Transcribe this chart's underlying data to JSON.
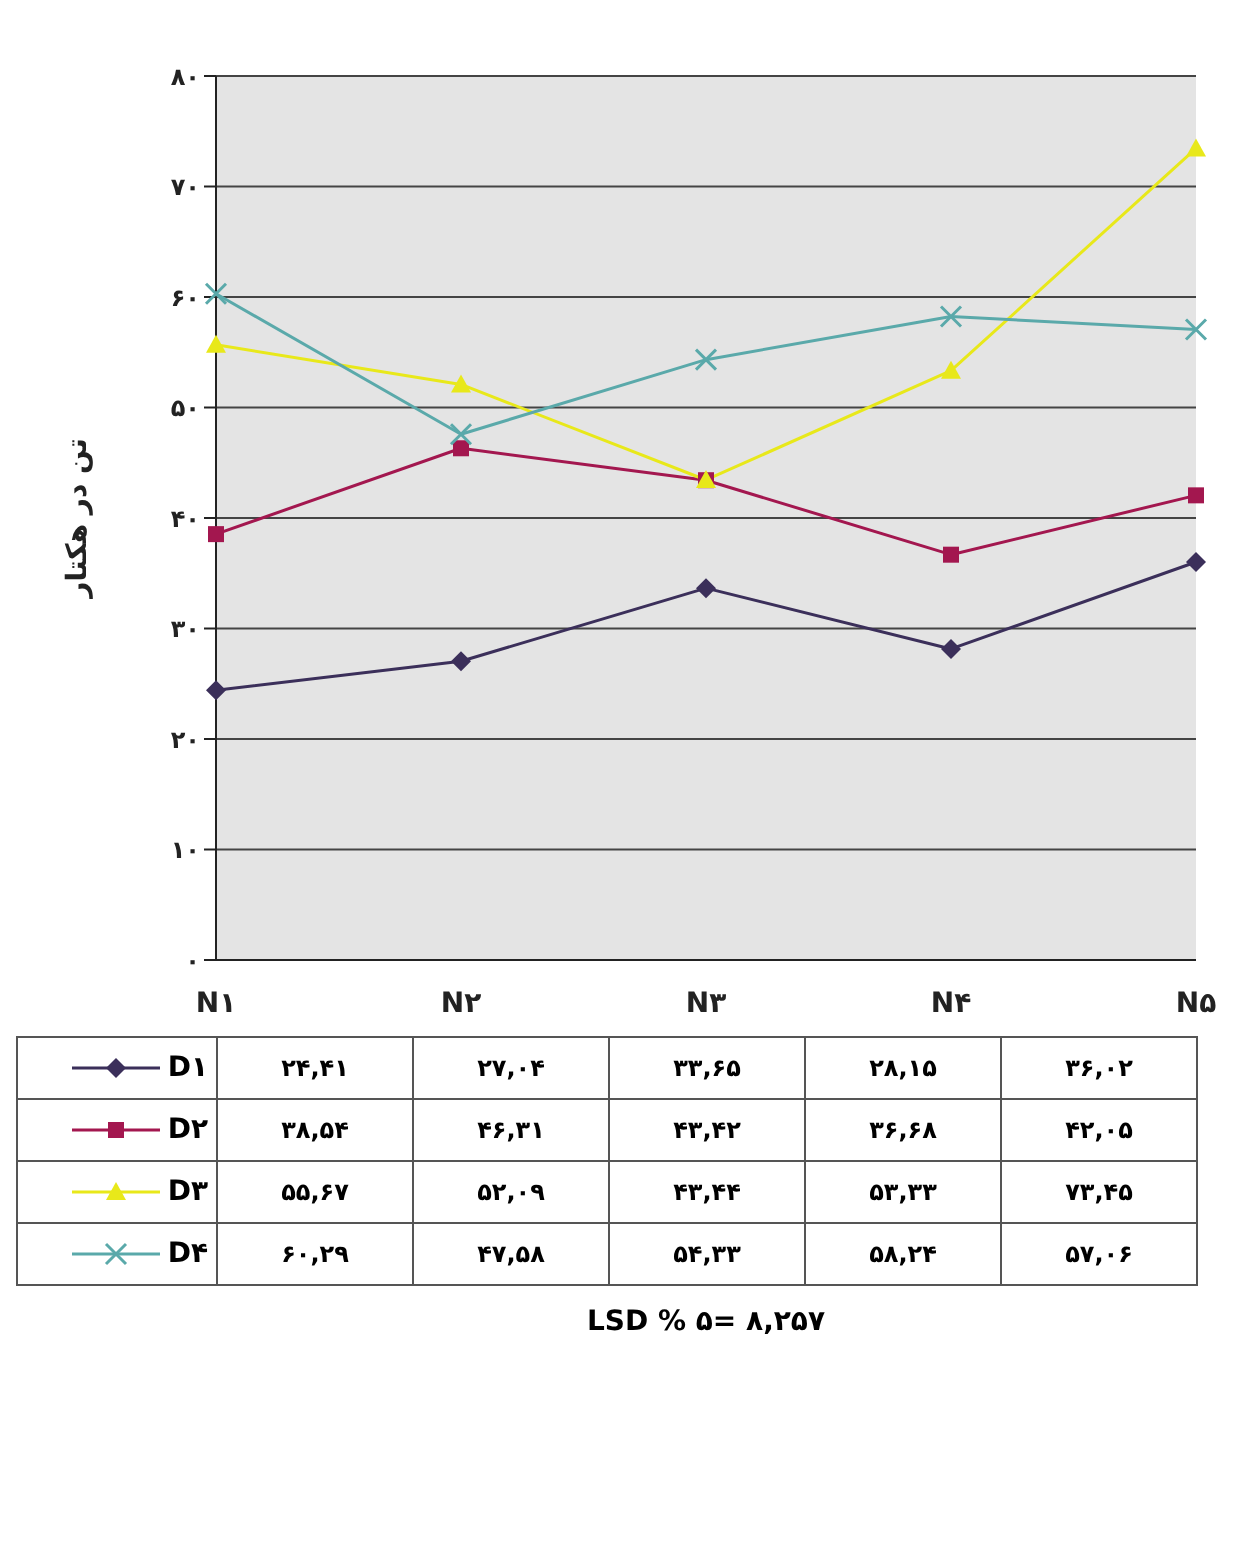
{
  "chart_data": {
    "type": "line",
    "ylabel": "تن در هکتار",
    "categories": [
      "N۱",
      "N۲",
      "N۳",
      "N۴",
      "N۵"
    ],
    "series": [
      {
        "name": "D۱",
        "color": "#3b2f5a",
        "marker": "diamond",
        "values": [
          24.41,
          27.04,
          33.65,
          28.15,
          36.02
        ],
        "value_labels": [
          "۲۴,۴۱",
          "۲۷,۰۴",
          "۳۳,۶۵",
          "۲۸,۱۵",
          "۳۶,۰۲"
        ]
      },
      {
        "name": "D۲",
        "color": "#a3174f",
        "marker": "square",
        "values": [
          38.54,
          46.31,
          43.42,
          36.68,
          42.05
        ],
        "value_labels": [
          "۳۸,۵۴",
          "۴۶,۳۱",
          "۴۳,۴۲",
          "۳۶,۶۸",
          "۴۲,۰۵"
        ]
      },
      {
        "name": "D۳",
        "color": "#e8e81a",
        "marker": "triangle",
        "values": [
          55.67,
          52.09,
          43.44,
          53.33,
          73.45
        ],
        "value_labels": [
          "۵۵,۶۷",
          "۵۲,۰۹",
          "۴۳,۴۴",
          "۵۳,۳۳",
          "۷۳,۴۵"
        ]
      },
      {
        "name": "D۴",
        "color": "#5aa9aa",
        "marker": "cross",
        "values": [
          60.29,
          47.58,
          54.33,
          58.24,
          57.06
        ],
        "value_labels": [
          "۶۰,۲۹",
          "۴۷,۵۸",
          "۵۴,۳۳",
          "۵۸,۲۴",
          "۵۷,۰۶"
        ]
      }
    ],
    "ylim": [
      0,
      80
    ],
    "yticks": [
      {
        "value": 0,
        "label": "۰"
      },
      {
        "value": 10,
        "label": "۱۰"
      },
      {
        "value": 20,
        "label": "۲۰"
      },
      {
        "value": 30,
        "label": "۳۰"
      },
      {
        "value": 40,
        "label": "۴۰"
      },
      {
        "value": 50,
        "label": "۵۰"
      },
      {
        "value": 60,
        "label": "۶۰"
      },
      {
        "value": 70,
        "label": "۷۰"
      },
      {
        "value": 80,
        "label": "۸۰"
      }
    ],
    "grid": "y",
    "legend": "bottom",
    "line_style": "solid",
    "annotations": [
      "LSD % ۵= ۸,۲۵۷"
    ]
  }
}
